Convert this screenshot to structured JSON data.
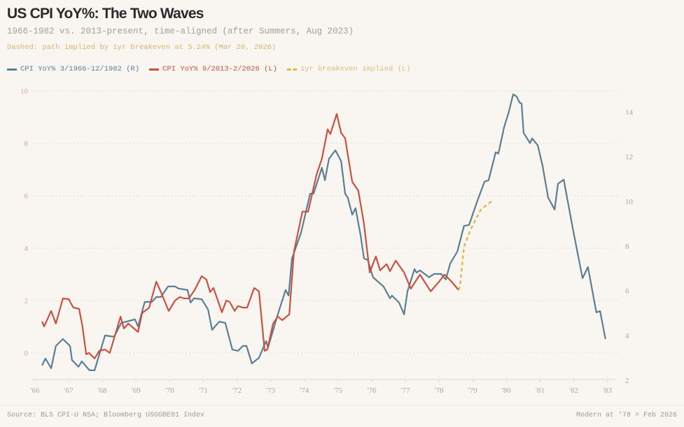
{
  "header": {
    "title": "US CPI YoY%: The Two Waves",
    "subtitle": "1966-1982 vs. 2013-present, time-aligned (after Summers, Aug 2023)",
    "note": "Dashed: path implied by 1yr breakeven at 5.24% (Mar 20, 2026)"
  },
  "footer": {
    "source": "Source: BLS CPI-U NSA; Bloomberg USGGBE01 Index",
    "alignment": "Modern at '78 = Feb 2026"
  },
  "chart_data": {
    "type": "line",
    "title": "US CPI YoY%: The Two Waves",
    "legend_position": "top-left",
    "grid": true,
    "x_ticks": [
      "'66",
      "'67",
      "'68",
      "'69",
      "'70",
      "'71",
      "'72",
      "'73",
      "'74",
      "'75",
      "'76",
      "'77",
      "'78",
      "'79",
      "'80",
      "'81",
      "'82",
      "'83"
    ],
    "xlim": [
      1966,
      1983
    ],
    "left_axis": {
      "ticks": [
        "0",
        "2",
        "4",
        "6",
        "8",
        "10"
      ],
      "ylim": [
        -0.9,
        10.4
      ]
    },
    "right_axis": {
      "ticks": [
        "2",
        "4",
        "6",
        "8",
        "10",
        "12",
        "14"
      ],
      "ylim": [
        2,
        14.9
      ]
    },
    "series": [
      {
        "name": "CPI YoY% 3/1966-12/1982 (R)",
        "axis": "right",
        "color": "#5b7e93",
        "style": "solid",
        "x": [
          1966.21,
          1966.31,
          1966.48,
          1966.62,
          1966.83,
          1967.04,
          1967.1,
          1967.29,
          1967.39,
          1967.62,
          1967.77,
          1968.08,
          1968.35,
          1968.56,
          1968.97,
          1969.06,
          1969.26,
          1969.47,
          1969.6,
          1969.74,
          1969.95,
          1970.16,
          1970.26,
          1970.53,
          1970.62,
          1970.72,
          1970.95,
          1971.14,
          1971.26,
          1971.47,
          1971.65,
          1971.86,
          1972.03,
          1972.17,
          1972.28,
          1972.44,
          1972.65,
          1972.86,
          1972.92,
          1973.21,
          1973.44,
          1973.53,
          1973.63,
          1973.9,
          1974.17,
          1974.27,
          1974.52,
          1974.61,
          1974.73,
          1974.92,
          1975.09,
          1975.21,
          1975.29,
          1975.42,
          1975.52,
          1975.67,
          1975.77,
          1975.88,
          1976.04,
          1976.35,
          1976.54,
          1976.6,
          1976.81,
          1976.96,
          1977.06,
          1977.27,
          1977.33,
          1977.43,
          1977.7,
          1977.85,
          1978.06,
          1978.2,
          1978.33,
          1978.54,
          1978.74,
          1978.89,
          1979.14,
          1979.35,
          1979.47,
          1979.68,
          1979.76,
          1979.93,
          1980.07,
          1980.2,
          1980.3,
          1980.39,
          1980.45,
          1980.51,
          1980.7,
          1980.76,
          1980.93,
          1981.07,
          1981.24,
          1981.43,
          1981.53,
          1981.7,
          1981.8,
          1982.01,
          1982.26,
          1982.42,
          1982.67,
          1982.78,
          1982.94
        ],
        "y": [
          2.66,
          2.97,
          2.53,
          3.53,
          3.84,
          3.53,
          2.9,
          2.6,
          2.84,
          2.44,
          2.44,
          4.0,
          3.94,
          4.56,
          4.72,
          4.4,
          5.5,
          5.5,
          5.72,
          5.72,
          6.19,
          6.19,
          6.1,
          6.03,
          5.47,
          5.66,
          5.62,
          5.16,
          4.25,
          4.62,
          4.56,
          3.37,
          3.31,
          3.53,
          3.53,
          2.75,
          3.0,
          3.75,
          3.47,
          4.94,
          6.03,
          5.78,
          7.44,
          8.59,
          10.34,
          10.34,
          11.5,
          10.94,
          11.9,
          12.28,
          11.8,
          10.34,
          10.16,
          9.4,
          9.69,
          8.47,
          7.44,
          7.38,
          6.6,
          6.19,
          5.66,
          5.78,
          5.47,
          4.94,
          5.97,
          6.97,
          6.81,
          6.91,
          6.6,
          6.75,
          6.75,
          6.5,
          7.22,
          7.75,
          8.9,
          8.94,
          10.03,
          10.88,
          10.94,
          12.19,
          12.13,
          13.31,
          14.0,
          14.78,
          14.69,
          14.41,
          14.38,
          13.06,
          12.6,
          12.81,
          12.5,
          11.6,
          10.16,
          9.63,
          10.78,
          10.97,
          10.16,
          8.47,
          6.56,
          7.06,
          5.03,
          5.09,
          3.84
        ]
      },
      {
        "name": "CPI YoY% 9/2013-2/2026 (L)",
        "axis": "left",
        "color": "#c9513f",
        "style": "solid",
        "x": [
          1966.21,
          1966.27,
          1966.48,
          1966.62,
          1966.83,
          1967.0,
          1967.14,
          1967.31,
          1967.41,
          1967.52,
          1967.6,
          1967.77,
          1967.91,
          1968.08,
          1968.22,
          1968.54,
          1968.64,
          1968.77,
          1969.06,
          1969.18,
          1969.39,
          1969.6,
          1969.74,
          1969.97,
          1970.16,
          1970.3,
          1970.43,
          1970.57,
          1970.74,
          1970.95,
          1971.09,
          1971.2,
          1971.3,
          1971.55,
          1971.68,
          1971.78,
          1971.93,
          1972.03,
          1972.17,
          1972.3,
          1972.51,
          1972.65,
          1972.82,
          1972.9,
          1973.07,
          1973.21,
          1973.34,
          1973.55,
          1973.69,
          1973.94,
          1974.11,
          1974.36,
          1974.52,
          1974.69,
          1974.77,
          1974.96,
          1975.09,
          1975.21,
          1975.42,
          1975.6,
          1975.77,
          1975.94,
          1976.12,
          1976.25,
          1976.44,
          1976.54,
          1976.71,
          1976.96,
          1977.16,
          1977.43,
          1977.75,
          1978.0,
          1978.16,
          1978.37,
          1978.58
        ],
        "y": [
          1.2,
          1.01,
          1.6,
          1.12,
          2.08,
          2.05,
          1.73,
          1.68,
          1.01,
          -0.05,
          0,
          -0.21,
          0.08,
          0.13,
          0,
          1.39,
          0.93,
          1.12,
          0.8,
          1.52,
          1.73,
          2.72,
          2.32,
          1.6,
          2.0,
          2.13,
          2.08,
          2.08,
          2.4,
          2.93,
          2.8,
          2.32,
          2.48,
          1.55,
          2.0,
          1.95,
          1.6,
          1.79,
          1.73,
          1.73,
          2.48,
          2.35,
          0.08,
          0.13,
          1.12,
          1.39,
          1.25,
          1.47,
          3.87,
          5.39,
          5.39,
          6.8,
          7.41,
          8.53,
          8.35,
          9.12,
          8.4,
          8.19,
          6.53,
          6.19,
          4.93,
          3.07,
          3.68,
          3.15,
          3.39,
          3.12,
          3.52,
          3.07,
          2.45,
          2.99,
          2.35,
          2.72,
          2.99,
          2.72,
          2.4
        ]
      },
      {
        "name": "1yr breakeven implied (L)",
        "axis": "left",
        "color": "#e0b84a",
        "style": "dashed",
        "x": [
          1978.58,
          1978.62,
          1978.74,
          1978.95,
          1979.24,
          1979.56
        ],
        "y": [
          2.4,
          2.53,
          4.05,
          4.75,
          5.47,
          5.79
        ]
      }
    ]
  }
}
